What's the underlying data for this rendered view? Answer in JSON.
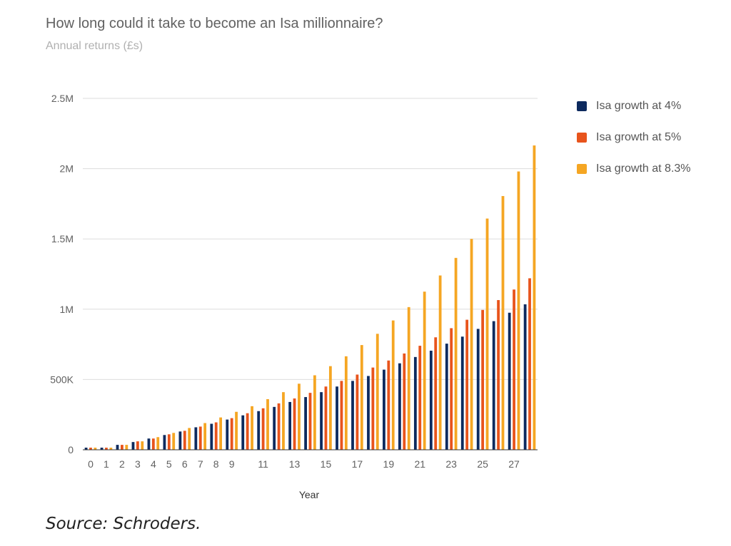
{
  "header": {
    "title": "How long could it take to become an Isa millionnaire?",
    "subtitle": "Annual returns (£s)"
  },
  "source": "Source: Schroders.",
  "colors": {
    "series_4": "#0d2a5e",
    "series_5": "#e8541c",
    "series_83": "#f5a623",
    "grid": "#dddddd",
    "axis": "#333333"
  },
  "chart_data": {
    "type": "bar",
    "title": "How long could it take to become an Isa millionnaire?",
    "subtitle": "Annual returns (£s)",
    "xlabel": "Year",
    "ylabel": "",
    "ylim": [
      0,
      2500000
    ],
    "yticks": [
      0,
      500000,
      1000000,
      1500000,
      2000000,
      2500000
    ],
    "ytick_labels": [
      "0",
      "500K",
      "1M",
      "1.5M",
      "2M",
      "2.5M"
    ],
    "xtick_labels": [
      "0",
      "1",
      "2",
      "3",
      "4",
      "5",
      "6",
      "7",
      "8",
      "9",
      "11",
      "13",
      "15",
      "17",
      "19",
      "21",
      "23",
      "25",
      "27"
    ],
    "grid": true,
    "legend_position": "right",
    "categories": [
      "0",
      "1",
      "2",
      "3",
      "4",
      "5",
      "6",
      "7",
      "8",
      "9",
      "10",
      "11",
      "12",
      "13",
      "14",
      "15",
      "16",
      "17",
      "18",
      "19",
      "20",
      "21",
      "22",
      "23",
      "24",
      "25",
      "26",
      "27",
      "28"
    ],
    "series": [
      {
        "name": "Isa growth at 4%",
        "color": "#0d2a5e",
        "values": [
          15000,
          15000,
          35000,
          55000,
          80000,
          105000,
          130000,
          160000,
          185000,
          215000,
          245000,
          275000,
          305000,
          340000,
          375000,
          410000,
          450000,
          490000,
          525000,
          570000,
          615000,
          660000,
          705000,
          755000,
          805000,
          860000,
          915000,
          975000,
          1035000
        ]
      },
      {
        "name": "Isa growth at 5%",
        "color": "#e8541c",
        "values": [
          15000,
          15000,
          35000,
          60000,
          80000,
          110000,
          135000,
          165000,
          195000,
          225000,
          260000,
          295000,
          330000,
          365000,
          405000,
          450000,
          490000,
          535000,
          585000,
          635000,
          685000,
          740000,
          800000,
          865000,
          925000,
          995000,
          1065000,
          1140000,
          1220000
        ]
      },
      {
        "name": "Isa growth at 8.3%",
        "color": "#f5a623",
        "values": [
          15000,
          15000,
          35000,
          60000,
          90000,
          120000,
          155000,
          190000,
          230000,
          270000,
          310000,
          360000,
          410000,
          470000,
          530000,
          595000,
          665000,
          745000,
          825000,
          920000,
          1015000,
          1125000,
          1240000,
          1365000,
          1500000,
          1645000,
          1805000,
          1980000,
          2165000
        ]
      }
    ]
  }
}
